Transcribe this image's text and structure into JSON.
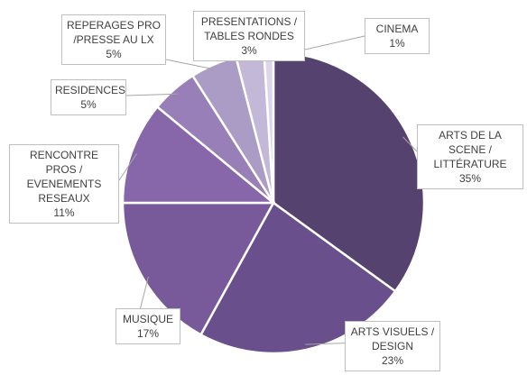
{
  "chart_data": {
    "type": "pie",
    "categories": [
      "ARTS DE LA SCENE / LITTÉRATURE",
      "ARTS VISUELS / DESIGN",
      "MUSIQUE",
      "RENCONTRE PROS / EVENEMENTS RESEAUX",
      "RESIDENCES",
      "REPERAGES PRO /PRESSE AU LX",
      "PRESENTATIONS / TABLES RONDES",
      "CINEMA"
    ],
    "values": [
      35,
      23,
      17,
      11,
      5,
      5,
      3,
      1
    ],
    "value_labels": [
      "35%",
      "23%",
      "17%",
      "11%",
      "5%",
      "5%",
      "3%",
      "1%"
    ],
    "colors": [
      "#56426f",
      "#694f8b",
      "#785a9b",
      "#8766a9",
      "#987fb8",
      "#ab9cc6",
      "#c3b8d8",
      "#ddd6ea"
    ]
  }
}
